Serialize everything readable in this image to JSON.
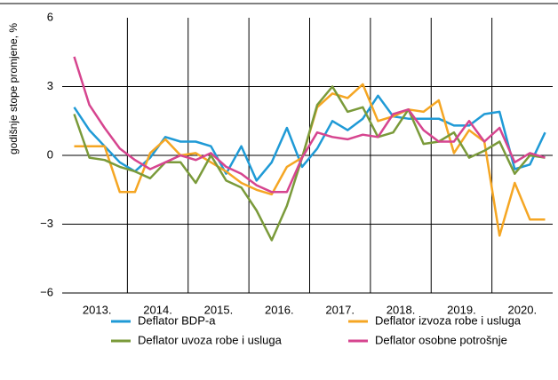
{
  "chart_data": {
    "type": "line",
    "y_axis_label": "godišnje stope promjene, %",
    "categories": [
      "2013.",
      null,
      null,
      null,
      "2014.",
      null,
      null,
      null,
      "2015.",
      null,
      null,
      null,
      "2016.",
      null,
      null,
      null,
      "2017.",
      null,
      null,
      null,
      "2018.",
      null,
      null,
      null,
      "2019.",
      null,
      null,
      null,
      "2020.",
      null,
      null,
      null
    ],
    "ylim": [
      -6,
      6
    ],
    "yticks": [
      {
        "value": 6,
        "label": "6"
      },
      {
        "value": 3,
        "label": "3"
      },
      {
        "value": 0,
        "label": "0"
      },
      {
        "value": -3,
        "label": "−3"
      },
      {
        "value": -6,
        "label": "−6"
      }
    ],
    "grid": true,
    "legend": "bottom",
    "series": [
      {
        "name": "Deflator BDP-a",
        "color": "#1f9ad6",
        "values": [
          2.1,
          1.1,
          0.4,
          -0.3,
          -0.7,
          -0.1,
          0.8,
          0.6,
          0.6,
          0.4,
          -0.8,
          0.4,
          -1.1,
          -0.3,
          1.2,
          -0.5,
          0.3,
          1.5,
          1.1,
          1.6,
          2.6,
          1.7,
          1.6,
          1.6,
          1.6,
          1.3,
          1.3,
          1.8,
          1.9,
          -0.6,
          -0.4,
          1.0
        ]
      },
      {
        "name": "Deflator izvoza robe i usluga",
        "color": "#f5a623",
        "values": [
          0.4,
          0.4,
          0.4,
          -1.6,
          -1.6,
          0.1,
          0.7,
          0.0,
          0.1,
          -0.3,
          -0.7,
          -1.2,
          -1.5,
          -1.7,
          -0.5,
          -0.1,
          2.1,
          2.7,
          2.5,
          3.1,
          1.5,
          1.7,
          2.0,
          1.9,
          2.4,
          0.1,
          1.1,
          0.6,
          -3.5,
          -1.2,
          -2.8,
          -2.8
        ]
      },
      {
        "name": "Deflator uvoza robe i usluga",
        "color": "#7a9a3a",
        "values": [
          1.8,
          -0.1,
          -0.2,
          -0.5,
          -0.7,
          -1.0,
          -0.3,
          -0.3,
          -1.2,
          0.0,
          -1.1,
          -1.4,
          -2.4,
          -3.7,
          -2.2,
          -0.1,
          2.2,
          3.0,
          1.9,
          2.1,
          0.8,
          1.0,
          2.0,
          0.5,
          0.6,
          1.0,
          -0.1,
          0.2,
          0.6,
          -0.8,
          0.0,
          -0.1
        ]
      },
      {
        "name": "Deflator osobne potrošnje",
        "color": "#d6458f",
        "values": [
          4.3,
          2.2,
          1.2,
          0.3,
          -0.2,
          -0.6,
          -0.3,
          0.0,
          -0.2,
          0.1,
          -0.5,
          -0.8,
          -1.3,
          -1.6,
          -1.6,
          -0.1,
          1.0,
          0.8,
          0.7,
          0.9,
          0.8,
          1.8,
          2.0,
          1.1,
          0.6,
          0.6,
          1.5,
          0.6,
          1.2,
          -0.3,
          0.1,
          -0.1
        ]
      }
    ]
  }
}
